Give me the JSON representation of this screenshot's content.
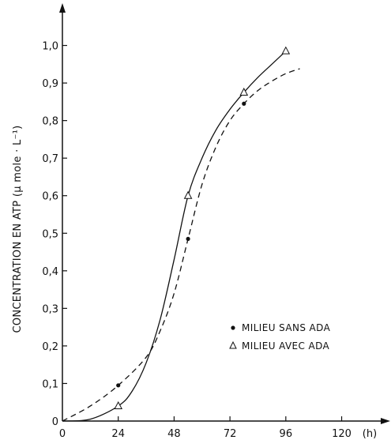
{
  "chart_data": {
    "type": "line",
    "ylabel": "CONCENTRATION EN ATP (μ mole · L⁻¹)",
    "x_unit_label": "(h)",
    "x_ticks": [
      0,
      24,
      48,
      72,
      96,
      120
    ],
    "x_tick_labels": [
      "0",
      "24",
      "48",
      "72",
      "96",
      "120"
    ],
    "y_ticks": [
      0,
      0.1,
      0.2,
      0.3,
      0.4,
      0.5,
      0.6,
      0.7,
      0.8,
      0.9,
      1.0
    ],
    "y_tick_labels": [
      "0",
      "0,1",
      "0,2",
      "0,3",
      "0,4",
      "0,5",
      "0,6",
      "0,7",
      "0,8",
      "0,9",
      "1,0"
    ],
    "xlim": [
      0,
      130
    ],
    "ylim": [
      0,
      1.1
    ],
    "grid": false,
    "legend_position": "lower-right",
    "series": [
      {
        "name": "MILIEU SANS ADA",
        "marker": "dot",
        "line_style": "dashed",
        "points": [
          {
            "x": 24,
            "y": 0.095
          },
          {
            "x": 54,
            "y": 0.485
          },
          {
            "x": 78,
            "y": 0.845
          }
        ],
        "curve": [
          {
            "x": 0,
            "y": 0.0
          },
          {
            "x": 12,
            "y": 0.04
          },
          {
            "x": 24,
            "y": 0.095
          },
          {
            "x": 36,
            "y": 0.17
          },
          {
            "x": 42,
            "y": 0.24
          },
          {
            "x": 48,
            "y": 0.34
          },
          {
            "x": 54,
            "y": 0.485
          },
          {
            "x": 60,
            "y": 0.63
          },
          {
            "x": 66,
            "y": 0.73
          },
          {
            "x": 72,
            "y": 0.8
          },
          {
            "x": 78,
            "y": 0.845
          },
          {
            "x": 84,
            "y": 0.88
          },
          {
            "x": 90,
            "y": 0.905
          },
          {
            "x": 96,
            "y": 0.925
          },
          {
            "x": 102,
            "y": 0.938
          }
        ]
      },
      {
        "name": "MILIEU AVEC ADA",
        "marker": "triangle",
        "line_style": "solid",
        "points": [
          {
            "x": 24,
            "y": 0.04
          },
          {
            "x": 54,
            "y": 0.6
          },
          {
            "x": 78,
            "y": 0.875
          },
          {
            "x": 96,
            "y": 0.985
          }
        ],
        "curve": [
          {
            "x": 0,
            "y": 0.0
          },
          {
            "x": 12,
            "y": 0.005
          },
          {
            "x": 24,
            "y": 0.04
          },
          {
            "x": 30,
            "y": 0.08
          },
          {
            "x": 36,
            "y": 0.155
          },
          {
            "x": 42,
            "y": 0.27
          },
          {
            "x": 48,
            "y": 0.43
          },
          {
            "x": 54,
            "y": 0.6
          },
          {
            "x": 60,
            "y": 0.7
          },
          {
            "x": 66,
            "y": 0.775
          },
          {
            "x": 72,
            "y": 0.83
          },
          {
            "x": 78,
            "y": 0.875
          },
          {
            "x": 84,
            "y": 0.915
          },
          {
            "x": 90,
            "y": 0.95
          },
          {
            "x": 96,
            "y": 0.985
          }
        ]
      }
    ]
  }
}
